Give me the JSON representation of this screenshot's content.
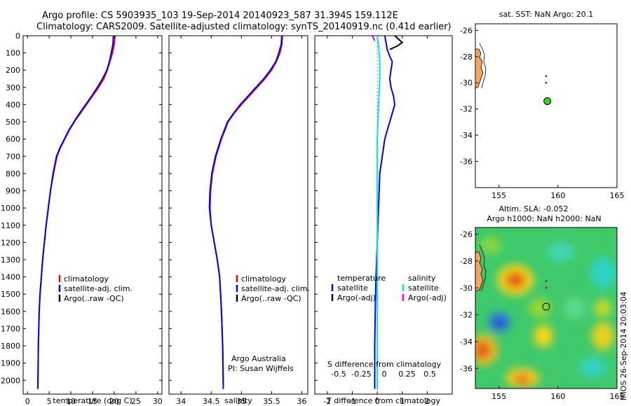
{
  "titles": {
    "line1": "Argo profile: CS 5903935_103 19-Sep-2014 20140923_587 31.394S 159.112E",
    "line2": "Climatology: CARS2009. Satellite-adjusted climatology: synTS_20140919.nc (0.41d earlier)"
  },
  "side_label": "IMOS 26-Sep-2014 20:03:04",
  "colors": {
    "climatology": "#ff0000",
    "satellite": "#0000ff",
    "argo": "#000000",
    "sal_satellite": "#00e5e5",
    "sal_argo": "#e500e5",
    "land": "#f4a460",
    "float_marker": "#44cc22"
  },
  "chart_data": [
    {
      "id": "temperature",
      "type": "line",
      "xlabel": "temperature (deg C)",
      "ylabel": "",
      "xlim": [
        -1,
        31
      ],
      "ylim": [
        2080,
        0
      ],
      "xticks": [
        0,
        5,
        10,
        15,
        20,
        25,
        30
      ],
      "yticks": [
        0,
        100,
        200,
        300,
        400,
        500,
        600,
        700,
        800,
        900,
        1000,
        1100,
        1200,
        1300,
        1400,
        1500,
        1600,
        1700,
        1800,
        1900,
        2000
      ],
      "legend": [
        "climatology",
        "satellite-adj. clim.",
        "Argo(..raw -QC)"
      ],
      "series": [
        {
          "name": "climatology",
          "color": "#ff0000",
          "x": [
            20.2,
            20.0,
            19.6,
            19.0,
            18.4,
            17.6,
            16.4,
            15.0,
            13.6,
            12.2,
            10.8,
            9.6,
            8.6,
            7.6,
            6.8,
            6.0,
            5.3,
            4.8,
            4.3,
            3.9,
            3.5,
            3.2,
            2.9,
            2.7,
            2.5,
            2.4
          ],
          "y": [
            0,
            50,
            100,
            150,
            200,
            250,
            300,
            350,
            400,
            450,
            500,
            550,
            600,
            650,
            700,
            800,
            900,
            1000,
            1100,
            1200,
            1300,
            1400,
            1500,
            1600,
            1800,
            2050
          ]
        },
        {
          "name": "satellite-adj. clim.",
          "color": "#0000ff",
          "x": [
            19.8,
            19.7,
            19.3,
            18.9,
            18.3,
            17.3,
            16.1,
            14.8,
            13.4,
            12.0,
            10.7,
            9.5,
            8.5,
            7.5,
            6.7,
            5.9,
            5.3,
            4.8,
            4.3,
            3.9,
            3.5,
            3.2,
            2.9,
            2.7,
            2.5,
            2.4
          ],
          "y": [
            0,
            50,
            100,
            150,
            200,
            250,
            300,
            350,
            400,
            450,
            500,
            550,
            600,
            650,
            700,
            800,
            900,
            1000,
            1100,
            1200,
            1300,
            1400,
            1500,
            1600,
            1800,
            2050
          ]
        }
      ]
    },
    {
      "id": "salinity",
      "type": "line",
      "xlabel": "salinity",
      "ylabel": "",
      "xlim": [
        33.8,
        36.1
      ],
      "ylim": [
        2080,
        0
      ],
      "xticks": [
        34,
        34.5,
        35,
        35.5,
        36
      ],
      "xticklabels": [
        "34",
        "34.5",
        "35",
        "35.5",
        "36"
      ],
      "legend": [
        "climatology",
        "satellite-adj. clim.",
        "Argo(..raw -QC)"
      ],
      "annotation": [
        "Argo Australia",
        "PI: Susan Wijffels"
      ],
      "series": [
        {
          "name": "climatology",
          "color": "#ff0000",
          "x": [
            35.68,
            35.67,
            35.64,
            35.58,
            35.5,
            35.39,
            35.26,
            35.13,
            35.0,
            34.88,
            34.78,
            34.67,
            34.58,
            34.52,
            34.49,
            34.48,
            34.5,
            34.55,
            34.6,
            34.64,
            34.67,
            34.69,
            34.7
          ],
          "y": [
            0,
            50,
            100,
            150,
            200,
            250,
            300,
            350,
            400,
            450,
            500,
            600,
            700,
            800,
            900,
            1000,
            1100,
            1200,
            1300,
            1400,
            1600,
            1800,
            2050
          ]
        },
        {
          "name": "satellite-adj. clim.",
          "color": "#0000ff",
          "x": [
            35.67,
            35.66,
            35.62,
            35.57,
            35.48,
            35.37,
            35.24,
            35.11,
            34.98,
            34.87,
            34.77,
            34.66,
            34.57,
            34.51,
            34.48,
            34.47,
            34.5,
            34.55,
            34.6,
            34.64,
            34.67,
            34.69,
            34.7
          ],
          "y": [
            0,
            50,
            100,
            150,
            200,
            250,
            300,
            350,
            400,
            450,
            500,
            600,
            700,
            800,
            900,
            1000,
            1100,
            1200,
            1300,
            1400,
            1600,
            1800,
            2050
          ]
        }
      ]
    },
    {
      "id": "difference",
      "type": "line",
      "xlabel": "T difference from climatology",
      "xlabel_top": "S difference from climatology",
      "xlim": [
        -2.5,
        3.0
      ],
      "ylim": [
        2080,
        0
      ],
      "xticks": [
        -2,
        -1,
        0,
        1,
        2
      ],
      "xticklabels_top": [
        "-0.5",
        "-0.25",
        "0",
        "0.25",
        "0.5"
      ],
      "legend_temperature": [
        "temperature",
        "satellite",
        "Argo(-adj)"
      ],
      "legend_salinity": [
        "salinity",
        "satellite",
        "Argo(-adj)"
      ],
      "series": [
        {
          "name": "satellite",
          "color": "#0000ff",
          "x": [
            0.3,
            0.35,
            0.4,
            0.5,
            0.6,
            0.55,
            0.5,
            0.55,
            0.65,
            0.7,
            0.6,
            0.5,
            0.4,
            0.3,
            0.2,
            0.1,
            0.05,
            0.0,
            -0.05,
            -0.08,
            -0.1,
            -0.1
          ],
          "y": [
            0,
            40,
            80,
            120,
            150,
            200,
            250,
            300,
            350,
            400,
            450,
            500,
            550,
            600,
            700,
            800,
            1000,
            1200,
            1400,
            1600,
            1800,
            2050
          ]
        },
        {
          "name": "argo",
          "color": "#000000",
          "x": [
            0.7,
            1.0,
            0.8,
            0.5
          ],
          "y": [
            0,
            40,
            60,
            80
          ]
        },
        {
          "name": "salinity satellite",
          "color": "#00e5e5",
          "x": [
            0.0,
            0.05,
            0.1,
            0.1,
            0.05,
            0.0,
            0.0,
            0.0,
            0.0,
            0.0
          ],
          "y": [
            0,
            60,
            150,
            250,
            400,
            600,
            900,
            1300,
            1700,
            2050
          ]
        },
        {
          "name": "salinity argo",
          "color": "#e500e5",
          "x": [
            -0.2,
            -0.1
          ],
          "y": [
            0,
            30
          ]
        }
      ]
    },
    {
      "id": "sst_map",
      "type": "scatter",
      "title": "sat. SST: NaN Argo: 20.1",
      "xlim": [
        153,
        165
      ],
      "ylim": [
        -38,
        -25.5
      ],
      "xticks": [
        155,
        160,
        165
      ],
      "yticks": [
        -26,
        -28,
        -30,
        -32,
        -34,
        -36
      ],
      "points": [
        [
          159.0,
          -29.5
        ],
        [
          159.0,
          -30.0
        ],
        [
          159.1,
          -31.4
        ]
      ]
    },
    {
      "id": "sla_map",
      "type": "heatmap",
      "title_line1": "Altim. SLA: -0.052",
      "title_line2": "Argo h1000: NaN h2000: NaN",
      "xlim": [
        153,
        165
      ],
      "ylim": [
        -37.5,
        -25.5
      ],
      "xticks": [
        155,
        160,
        165
      ],
      "yticks": [
        -26,
        -28,
        -30,
        -32,
        -34,
        -36
      ],
      "points": [
        [
          159.0,
          -29.5
        ],
        [
          159.0,
          -30.0
        ],
        [
          159.0,
          -31.4
        ]
      ]
    }
  ]
}
